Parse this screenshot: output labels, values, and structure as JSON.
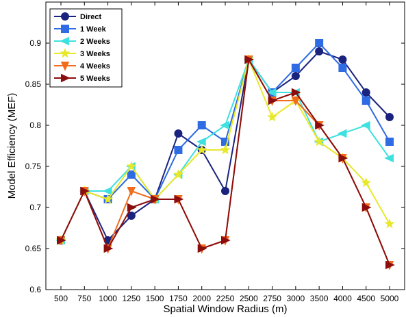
{
  "chart_data": {
    "type": "line",
    "title": "",
    "xlabel": "Spatial Window Radius (m)",
    "ylabel": "Model Efficiency (MEF)",
    "categories": [
      "500",
      "750",
      "1000",
      "1250",
      "1500",
      "1750",
      "2000",
      "2250",
      "2500",
      "2750",
      "3000",
      "3500",
      "4000",
      "4500",
      "5000"
    ],
    "yticks": [
      "0.6",
      "0.65",
      "0.7",
      "0.75",
      "0.8",
      "0.85",
      "0.9"
    ],
    "ylim": [
      0.6,
      0.95
    ],
    "grid": false,
    "legend_position": "top-left",
    "series": [
      {
        "name": "Direct",
        "color": "#1a237e",
        "marker": "circle",
        "values": [
          0.66,
          0.72,
          0.66,
          0.69,
          0.71,
          0.79,
          0.77,
          0.72,
          0.88,
          0.84,
          0.86,
          0.89,
          0.88,
          0.84,
          0.81
        ]
      },
      {
        "name": "1 Week",
        "color": "#2f6be3",
        "marker": "square",
        "values": [
          0.66,
          0.72,
          0.71,
          0.74,
          0.71,
          0.77,
          0.8,
          0.78,
          0.88,
          0.84,
          0.87,
          0.9,
          0.87,
          0.83,
          0.78
        ]
      },
      {
        "name": "2 Weeks",
        "color": "#3fe0e0",
        "marker": "triangle-left",
        "values": [
          0.66,
          0.72,
          0.72,
          0.75,
          0.71,
          0.74,
          0.78,
          0.8,
          0.88,
          0.84,
          0.84,
          0.78,
          0.79,
          0.8,
          0.76
        ]
      },
      {
        "name": "3 Weeks",
        "color": "#e8e82a",
        "marker": "star",
        "values": [
          0.66,
          0.72,
          0.71,
          0.75,
          0.71,
          0.74,
          0.77,
          0.77,
          0.88,
          0.81,
          0.83,
          0.78,
          0.76,
          0.73,
          0.68
        ]
      },
      {
        "name": "4 Weeks",
        "color": "#f26b1d",
        "marker": "triangle-down",
        "values": [
          0.66,
          0.72,
          0.65,
          0.72,
          0.71,
          0.71,
          0.65,
          0.66,
          0.88,
          0.83,
          0.83,
          0.8,
          0.76,
          0.7,
          0.63
        ]
      },
      {
        "name": "5 Weeks",
        "color": "#8b0d0d",
        "marker": "triangle-right",
        "values": [
          0.66,
          0.72,
          0.65,
          0.7,
          0.71,
          0.71,
          0.65,
          0.66,
          0.88,
          0.83,
          0.84,
          0.8,
          0.76,
          0.7,
          0.63
        ]
      }
    ]
  }
}
